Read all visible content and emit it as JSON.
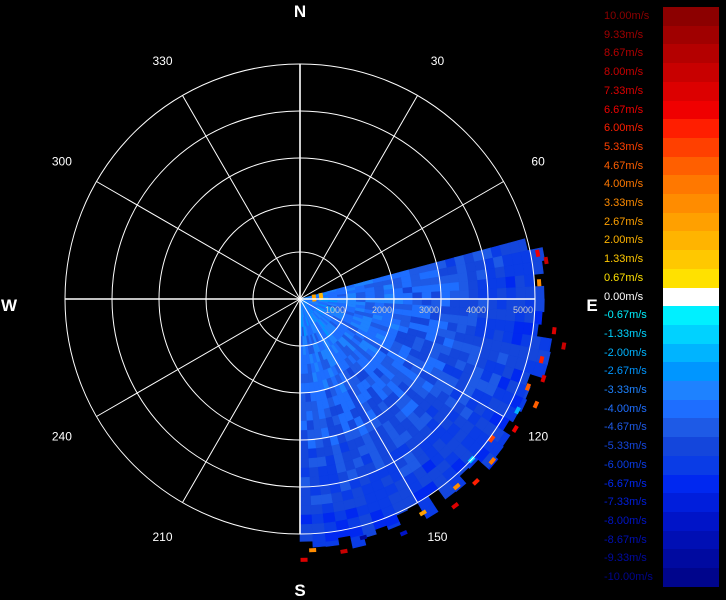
{
  "chart_data": {
    "type": "polar-radar-ppi",
    "cardinals": [
      "N",
      "E",
      "S",
      "W"
    ],
    "bearings": [
      {
        "deg": 30,
        "label": "30"
      },
      {
        "deg": 60,
        "label": "60"
      },
      {
        "deg": 120,
        "label": "120"
      },
      {
        "deg": 150,
        "label": "150"
      },
      {
        "deg": 210,
        "label": "210"
      },
      {
        "deg": 240,
        "label": "240"
      },
      {
        "deg": 300,
        "label": "300"
      },
      {
        "deg": 330,
        "label": "330"
      }
    ],
    "range_max": 5000,
    "range_rings": [
      1000,
      2000,
      3000,
      4000,
      5000
    ],
    "range_labels": [
      "1000",
      "2000",
      "3000",
      "4000",
      "5000"
    ],
    "sector": {
      "start_azimuth": 75,
      "end_azimuth": 180,
      "max_range": 5200
    },
    "velocity_field": {
      "unit": "m/s",
      "near_range_value": -3.33,
      "far_range_value": -6.0
    },
    "colorbar": {
      "unit": "m/s",
      "entries": [
        {
          "value": 10.0,
          "label": "10.00m/s",
          "color": "#8c0000"
        },
        {
          "value": 9.33,
          "label": "9.33m/s",
          "color": "#a00000"
        },
        {
          "value": 8.67,
          "label": "8.67m/s",
          "color": "#b40000"
        },
        {
          "value": 8.0,
          "label": "8.00m/s",
          "color": "#c80000"
        },
        {
          "value": 7.33,
          "label": "7.33m/s",
          "color": "#dc0000"
        },
        {
          "value": 6.67,
          "label": "6.67m/s",
          "color": "#f00000"
        },
        {
          "value": 6.0,
          "label": "6.00m/s",
          "color": "#ff1e00"
        },
        {
          "value": 5.33,
          "label": "5.33m/s",
          "color": "#ff4000"
        },
        {
          "value": 4.67,
          "label": "4.67m/s",
          "color": "#ff5f00"
        },
        {
          "value": 4.0,
          "label": "4.00m/s",
          "color": "#ff7800"
        },
        {
          "value": 3.33,
          "label": "3.33m/s",
          "color": "#ff8c00"
        },
        {
          "value": 2.67,
          "label": "2.67m/s",
          "color": "#ffa000"
        },
        {
          "value": 2.0,
          "label": "2.00m/s",
          "color": "#ffb400"
        },
        {
          "value": 1.33,
          "label": "1.33m/s",
          "color": "#ffc800"
        },
        {
          "value": 0.67,
          "label": "0.67m/s",
          "color": "#ffe100"
        },
        {
          "value": 0.0,
          "label": "0.00m/s",
          "color": "#ffffff"
        },
        {
          "value": -0.67,
          "label": "-0.67m/s",
          "color": "#00f0ff"
        },
        {
          "value": -1.33,
          "label": "-1.33m/s",
          "color": "#00d2ff"
        },
        {
          "value": -2.0,
          "label": "-2.00m/s",
          "color": "#00b4ff"
        },
        {
          "value": -2.67,
          "label": "-2.67m/s",
          "color": "#0096ff"
        },
        {
          "value": -3.33,
          "label": "-3.33m/s",
          "color": "#1e82ff"
        },
        {
          "value": -4.0,
          "label": "-4.00m/s",
          "color": "#1e6eff"
        },
        {
          "value": -4.67,
          "label": "-4.67m/s",
          "color": "#1e5ae6"
        },
        {
          "value": -5.33,
          "label": "-5.33m/s",
          "color": "#1446dc"
        },
        {
          "value": -6.0,
          "label": "-6.00m/s",
          "color": "#0a3ce6"
        },
        {
          "value": -6.67,
          "label": "-6.67m/s",
          "color": "#0028f0"
        },
        {
          "value": -7.33,
          "label": "-7.33m/s",
          "color": "#001edc"
        },
        {
          "value": -8.0,
          "label": "-8.00m/s",
          "color": "#0014c8"
        },
        {
          "value": -8.67,
          "label": "-8.67m/s",
          "color": "#000fb4"
        },
        {
          "value": -9.33,
          "label": "-9.33m/s",
          "color": "#000aa0"
        },
        {
          "value": -10.0,
          "label": "-10.00m/s",
          "color": "#00058c"
        }
      ]
    },
    "speckles": [
      {
        "az": 79,
        "r": 5150,
        "v": 6.67
      },
      {
        "az": 81,
        "r": 5300,
        "v": 8.0
      },
      {
        "az": 97,
        "r": 5450,
        "v": 7.33
      },
      {
        "az": 100,
        "r": 5700,
        "v": 8.0
      },
      {
        "az": 104,
        "r": 5300,
        "v": 6.0
      },
      {
        "az": 108,
        "r": 5450,
        "v": 7.33
      },
      {
        "az": 111,
        "r": 5200,
        "v": 4.67
      },
      {
        "az": 114,
        "r": 5500,
        "v": 4.67
      },
      {
        "az": 117,
        "r": 5200,
        "v": -2.0
      },
      {
        "az": 121,
        "r": 5350,
        "v": 6.67
      },
      {
        "az": 126,
        "r": 5050,
        "v": 5.33
      },
      {
        "az": 130,
        "r": 5350,
        "v": 4.0
      },
      {
        "az": 133,
        "r": 5000,
        "v": -1.33
      },
      {
        "az": 136,
        "r": 5400,
        "v": 6.0
      },
      {
        "az": 140,
        "r": 5200,
        "v": 3.33
      },
      {
        "az": 143,
        "r": 5500,
        "v": 7.33
      },
      {
        "az": 150,
        "r": 5250,
        "v": 2.67
      },
      {
        "az": 156,
        "r": 5450,
        "v": -8.0
      },
      {
        "az": 165,
        "r": 5250,
        "v": -9.33
      },
      {
        "az": 170,
        "r": 5450,
        "v": 8.0
      },
      {
        "az": 177,
        "r": 5350,
        "v": 3.33
      },
      {
        "az": 179,
        "r": 5550,
        "v": 7.33
      },
      {
        "az": 86,
        "r": 5100,
        "v": 3.33
      },
      {
        "az": 84,
        "r": 300,
        "v": 2.67
      },
      {
        "az": 82,
        "r": 450,
        "v": 2.0
      }
    ]
  }
}
